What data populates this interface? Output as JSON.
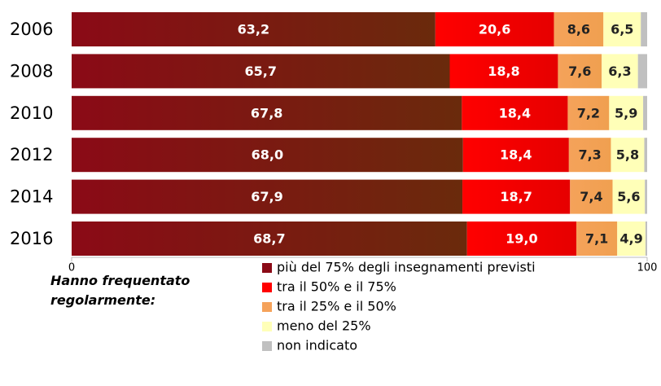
{
  "chart_data": {
    "type": "bar",
    "orientation": "horizontal",
    "stacked": true,
    "categories": [
      "2006",
      "2008",
      "2010",
      "2012",
      "2014",
      "2016"
    ],
    "legend_title": "Hanno frequentato regolarmente:",
    "series": [
      {
        "name": "più del 75% degli insegnamenti previsti",
        "color": "#8b0a16",
        "values": [
          63.2,
          65.7,
          67.8,
          68.0,
          67.9,
          68.7
        ],
        "value_labels": [
          "63,2",
          "65,7",
          "67,8",
          "68,0",
          "67,9",
          "68,7"
        ]
      },
      {
        "name": "tra il 50% e il 75%",
        "color": "#ff0000",
        "values": [
          20.6,
          18.8,
          18.4,
          18.4,
          18.7,
          19.0
        ],
        "value_labels": [
          "20,6",
          "18,8",
          "18,4",
          "18,4",
          "18,7",
          "19,0"
        ]
      },
      {
        "name": "tra il 25% e il 50%",
        "color": "#f5a25a",
        "values": [
          8.6,
          7.6,
          7.2,
          7.3,
          7.4,
          7.1
        ],
        "value_labels": [
          "8,6",
          "7,6",
          "7,2",
          "7,3",
          "7,4",
          "7,1"
        ]
      },
      {
        "name": "meno del 25%",
        "color": "#ffffb8",
        "values": [
          6.5,
          6.3,
          5.9,
          5.8,
          5.6,
          4.9
        ],
        "value_labels": [
          "6,5",
          "6,3",
          "5,9",
          "5,8",
          "5,6",
          "4,9"
        ]
      },
      {
        "name": "non indicato",
        "color": "#c0c0c0",
        "values": [
          1.1,
          1.6,
          0.7,
          0.5,
          0.4,
          0.3
        ]
      }
    ],
    "xlim": [
      0,
      100
    ],
    "xticks": [
      0,
      100
    ]
  }
}
